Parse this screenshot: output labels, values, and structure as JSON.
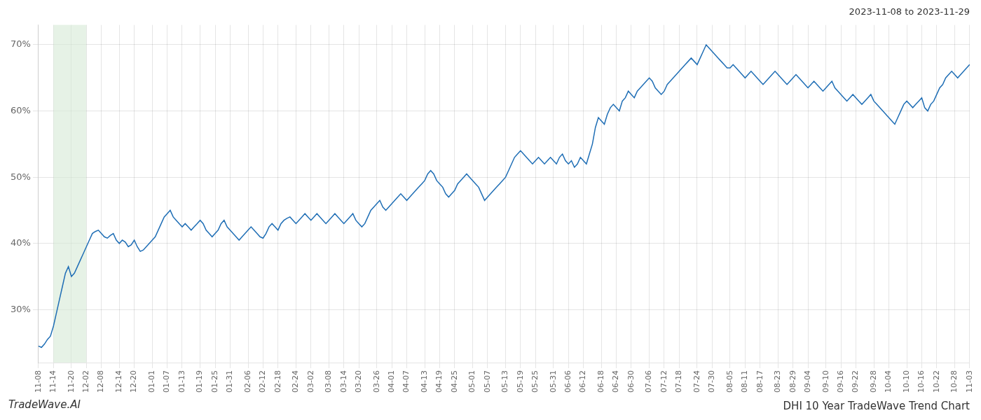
{
  "chart_data": {
    "type": "line",
    "title": "DHI 10 Year TradeWave Trend Chart",
    "subtitle": "2023-11-08 to 2023-11-29",
    "annotations": [
      "TradeWave.AI"
    ],
    "color": "#1f6eb5",
    "grid": true,
    "highlight": {
      "from": "11-14",
      "to": "12-02",
      "color": "#d6ead6"
    },
    "ylim": [
      22,
      73
    ],
    "yticks": [
      {
        "value": 30,
        "label": "30%"
      },
      {
        "value": 40,
        "label": "40%"
      },
      {
        "value": 50,
        "label": "50%"
      },
      {
        "value": 60,
        "label": "60%"
      },
      {
        "value": 70,
        "label": "70%"
      }
    ],
    "categories": [
      "11-08",
      null,
      null,
      null,
      null,
      "11-14",
      null,
      null,
      null,
      null,
      null,
      "11-20",
      null,
      null,
      null,
      null,
      "12-02",
      null,
      null,
      null,
      null,
      "12-08",
      null,
      null,
      null,
      null,
      null,
      "12-14",
      null,
      null,
      null,
      null,
      "12-20",
      null,
      null,
      null,
      null,
      null,
      "01-01",
      null,
      null,
      null,
      null,
      "01-07",
      null,
      null,
      null,
      null,
      "01-13",
      null,
      null,
      null,
      null,
      null,
      "01-19",
      null,
      null,
      null,
      null,
      "01-25",
      null,
      null,
      null,
      null,
      "01-31",
      null,
      null,
      null,
      null,
      null,
      "02-06",
      null,
      null,
      null,
      null,
      "02-12",
      null,
      null,
      null,
      null,
      "02-18",
      null,
      null,
      null,
      null,
      null,
      "02-24",
      null,
      null,
      null,
      null,
      "03-02",
      null,
      null,
      null,
      null,
      null,
      "03-08",
      null,
      null,
      null,
      null,
      "03-14",
      null,
      null,
      null,
      null,
      "03-20",
      null,
      null,
      null,
      null,
      null,
      "03-26",
      null,
      null,
      null,
      null,
      "04-01",
      null,
      null,
      null,
      null,
      "04-07",
      null,
      null,
      null,
      null,
      null,
      "04-13",
      null,
      null,
      null,
      null,
      "04-19",
      null,
      null,
      null,
      null,
      "04-25",
      null,
      null,
      null,
      null,
      null,
      "05-01",
      null,
      null,
      null,
      null,
      "05-07",
      null,
      null,
      null,
      null,
      null,
      "05-13",
      null,
      null,
      null,
      null,
      "05-19",
      null,
      null,
      null,
      null,
      "05-25",
      null,
      null,
      null,
      null,
      null,
      "05-31",
      null,
      null,
      null,
      null,
      "06-06",
      null,
      null,
      null,
      null,
      "06-12",
      null,
      null,
      null,
      null,
      null,
      "06-18",
      null,
      null,
      null,
      null,
      "06-24",
      null,
      null,
      null,
      null,
      "06-30",
      null,
      null,
      null,
      null,
      null,
      "07-06",
      null,
      null,
      null,
      null,
      "07-12",
      null,
      null,
      null,
      null,
      "07-18",
      null,
      null,
      null,
      null,
      null,
      "07-24",
      null,
      null,
      null,
      null,
      "07-30",
      null,
      null,
      null,
      null,
      null,
      "08-05",
      null,
      null,
      null,
      null,
      "08-11",
      null,
      null,
      null,
      null,
      "08-17",
      null,
      null,
      null,
      null,
      null,
      "08-23",
      null,
      null,
      null,
      null,
      "08-29",
      null,
      null,
      null,
      null,
      "09-04",
      null,
      null,
      null,
      null,
      null,
      "09-10",
      null,
      null,
      null,
      null,
      "09-16",
      null,
      null,
      null,
      null,
      "09-22",
      null,
      null,
      null,
      null,
      null,
      "09-28",
      null,
      null,
      null,
      null,
      "10-04",
      null,
      null,
      null,
      null,
      null,
      "10-10",
      null,
      null,
      null,
      null,
      "10-16",
      null,
      null,
      null,
      null,
      "10-22",
      null,
      null,
      null,
      null,
      null,
      "10-28",
      null,
      null,
      null,
      null,
      "11-03"
    ],
    "values": [
      24.5,
      24.3,
      24.8,
      25.5,
      26.0,
      27.5,
      29.5,
      31.5,
      33.5,
      35.5,
      36.5,
      35.0,
      35.5,
      36.5,
      37.5,
      38.5,
      39.5,
      40.5,
      41.5,
      41.8,
      42.0,
      41.5,
      41.0,
      40.8,
      41.2,
      41.5,
      40.5,
      40.0,
      40.5,
      40.2,
      39.5,
      39.8,
      40.5,
      39.5,
      38.8,
      39.0,
      39.5,
      40.0,
      40.5,
      41.0,
      42.0,
      43.0,
      44.0,
      44.5,
      45.0,
      44.0,
      43.5,
      43.0,
      42.5,
      43.0,
      42.5,
      42.0,
      42.5,
      43.0,
      43.5,
      43.0,
      42.0,
      41.5,
      41.0,
      41.5,
      42.0,
      43.0,
      43.5,
      42.5,
      42.0,
      41.5,
      41.0,
      40.5,
      41.0,
      41.5,
      42.0,
      42.5,
      42.0,
      41.5,
      41.0,
      40.8,
      41.5,
      42.5,
      43.0,
      42.5,
      42.0,
      43.0,
      43.5,
      43.8,
      44.0,
      43.5,
      43.0,
      43.5,
      44.0,
      44.5,
      44.0,
      43.5,
      44.0,
      44.5,
      44.0,
      43.5,
      43.0,
      43.5,
      44.0,
      44.5,
      44.0,
      43.5,
      43.0,
      43.5,
      44.0,
      44.5,
      43.5,
      43.0,
      42.5,
      43.0,
      44.0,
      45.0,
      45.5,
      46.0,
      46.5,
      45.5,
      45.0,
      45.5,
      46.0,
      46.5,
      47.0,
      47.5,
      47.0,
      46.5,
      47.0,
      47.5,
      48.0,
      48.5,
      49.0,
      49.5,
      50.5,
      51.0,
      50.5,
      49.5,
      49.0,
      48.5,
      47.5,
      47.0,
      47.5,
      48.0,
      49.0,
      49.5,
      50.0,
      50.5,
      50.0,
      49.5,
      49.0,
      48.5,
      47.5,
      46.5,
      47.0,
      47.5,
      48.0,
      48.5,
      49.0,
      49.5,
      50.0,
      51.0,
      52.0,
      53.0,
      53.5,
      54.0,
      53.5,
      53.0,
      52.5,
      52.0,
      52.5,
      53.0,
      52.5,
      52.0,
      52.5,
      53.0,
      52.5,
      52.0,
      53.0,
      53.5,
      52.5,
      52.0,
      52.5,
      51.5,
      52.0,
      53.0,
      52.5,
      52.0,
      53.5,
      55.0,
      57.5,
      59.0,
      58.5,
      58.0,
      59.5,
      60.5,
      61.0,
      60.5,
      60.0,
      61.5,
      62.0,
      63.0,
      62.5,
      62.0,
      63.0,
      63.5,
      64.0,
      64.5,
      65.0,
      64.5,
      63.5,
      63.0,
      62.5,
      63.0,
      64.0,
      64.5,
      65.0,
      65.5,
      66.0,
      66.5,
      67.0,
      67.5,
      68.0,
      67.5,
      67.0,
      68.0,
      69.0,
      70.0,
      69.5,
      69.0,
      68.5,
      68.0,
      67.5,
      67.0,
      66.5,
      66.5,
      67.0,
      66.5,
      66.0,
      65.5,
      65.0,
      65.5,
      66.0,
      65.5,
      65.0,
      64.5,
      64.0,
      64.5,
      65.0,
      65.5,
      66.0,
      65.5,
      65.0,
      64.5,
      64.0,
      64.5,
      65.0,
      65.5,
      65.0,
      64.5,
      64.0,
      63.5,
      64.0,
      64.5,
      64.0,
      63.5,
      63.0,
      63.5,
      64.0,
      64.5,
      63.5,
      63.0,
      62.5,
      62.0,
      61.5,
      62.0,
      62.5,
      62.0,
      61.5,
      61.0,
      61.5,
      62.0,
      62.5,
      61.5,
      61.0,
      60.5,
      60.0,
      59.5,
      59.0,
      58.5,
      58.0,
      59.0,
      60.0,
      61.0,
      61.5,
      61.0,
      60.5,
      61.0,
      61.5,
      62.0,
      60.5,
      60.0,
      61.0,
      61.5,
      62.5,
      63.5,
      64.0,
      65.0,
      65.5,
      66.0,
      65.5,
      65.0,
      65.5,
      66.0,
      66.5,
      67.0
    ]
  }
}
